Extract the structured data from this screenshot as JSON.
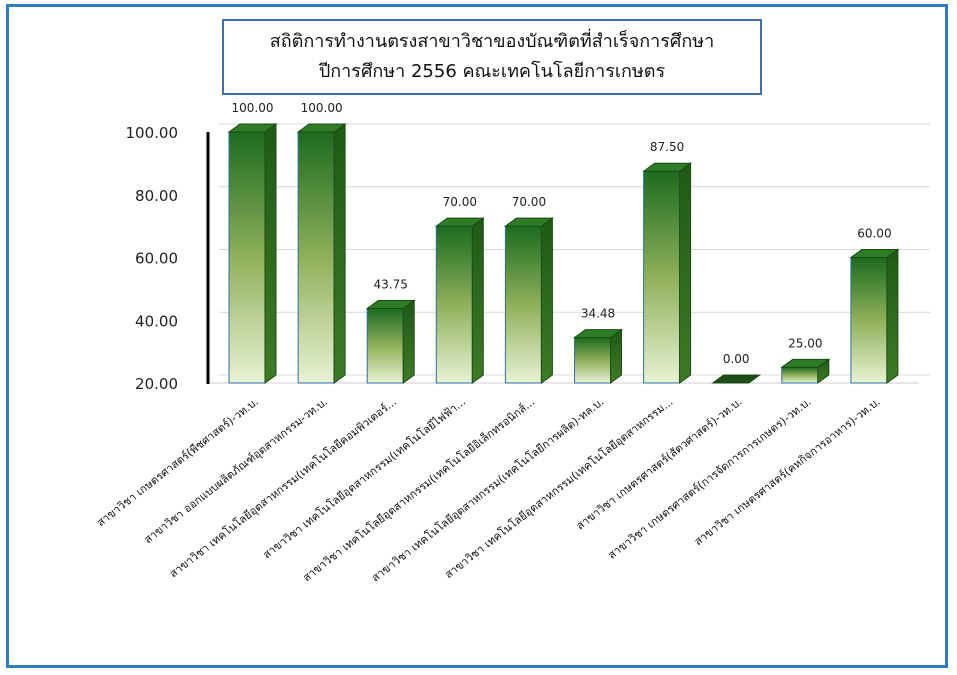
{
  "colors": {
    "frame": "#2f7ec4",
    "bar_top": "#1c6b1f",
    "bar_bottom": "#e8f2d4",
    "bar_side": "#1f5a16",
    "bar_cap": "#2e7d26",
    "axis": "#000000"
  },
  "chart_data": {
    "type": "bar",
    "title": "สถิติการทำงานตรงสาขาวิชาของบัณฑิตที่สำเร็จการศึกษา",
    "subtitle": "ปีการศึกษา 2556 คณะเทคโนโลยีการเกษตร",
    "categories": [
      "สาขาวิชา เกษตรศาสตร์(พืชศาสตร์)-วท.บ.",
      "สาขาวิชา ออกแบบผลิตภัณฑ์อุตสาหกรรม-วท.บ.",
      "สาขาวิชา เทคโนโลยีอุตสาหกรรม(เทคโนโลยีคอมพิวเตอร์...",
      "สาขาวิชา เทคโนโลยีอุตสาหกรรม(เทคโนโลยีไฟฟ้า...",
      "สาขาวิชา เทคโนโลยีอุตสาหกรรม(เทคโนโลยีอิเล็กทรอนิกส์...",
      "สาขาวิชา เทคโนโลยีอุตสาหกรรม(เทคโนโลยีการผลิต)-ทล.บ.",
      "สาขาวิชา เทคโนโลยีอุตสาหกรรม(เทคโนโลยีอุตสาหกรรม...",
      "สาขาวิชา เกษตรศาสตร์(สัตวศาสตร์)-วท.บ.",
      "สาขาวิชา เกษตรศาสตร์(การจัดการการเกษตร)-วท.บ.",
      "สาขาวิชา เกษตรศาสตร์(คหกิจการอาหาร)-วท.บ."
    ],
    "values": [
      100.0,
      100.0,
      43.75,
      70.0,
      70.0,
      34.48,
      87.5,
      0.0,
      25.0,
      60.0
    ],
    "value_labels": [
      "100.00",
      "100.00",
      "43.75",
      "70.00",
      "70.00",
      "34.48",
      "87.50",
      "0.00",
      "25.00",
      "60.00"
    ],
    "yticks": [
      "20.00",
      "40.00",
      "60.00",
      "80.00",
      "100.00"
    ],
    "ylim": [
      20,
      100
    ],
    "xlabel": "",
    "ylabel": "",
    "grid": true,
    "legend": "none"
  }
}
